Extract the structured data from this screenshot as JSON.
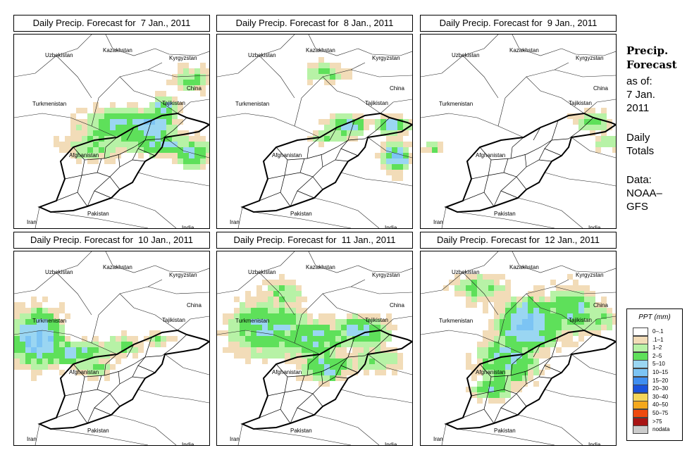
{
  "panels": [
    {
      "title": "Daily Precip. Forecast for  7 Jan., 2011",
      "day": 7
    },
    {
      "title": "Daily Precip. Forecast for  8 Jan., 2011",
      "day": 8
    },
    {
      "title": "Daily Precip. Forecast for  9 Jan., 2011",
      "day": 9
    },
    {
      "title": "Daily Precip. Forecast for  10 Jan., 2011",
      "day": 10
    },
    {
      "title": "Daily Precip. Forecast for  11 Jan., 2011",
      "day": 11
    },
    {
      "title": "Daily Precip. Forecast for  12 Jan., 2011",
      "day": 12
    }
  ],
  "map_labels": {
    "uzbekistan": "Uzbekistan",
    "kazakhstan": "Kazakhstan",
    "kyrgyzstan": "Kyrgyzstan",
    "china": "China",
    "turkmenistan": "Turkmenistan",
    "tajikistan": "Tajikistan",
    "afghanistan": "Afghanistan",
    "pakistan": "Pakistan",
    "iran": "Iran",
    "india": "India"
  },
  "sidebar": {
    "title_line1": "Precip.",
    "title_line2": "Forecast",
    "asof_line1": "as of:",
    "asof_line2": "7 Jan.",
    "asof_line3": "2011",
    "daily_line1": "Daily",
    "daily_line2": "Totals",
    "data_line1": "Data:",
    "data_line2": "NOAA–",
    "data_line3": "GFS"
  },
  "legend": {
    "title": "PPT (mm)",
    "classes": [
      {
        "label": "0–.1",
        "color": "#ffffff"
      },
      {
        "label": ".1–1",
        "color": "#f2dcb8"
      },
      {
        "label": "1–2",
        "color": "#b7f2a6"
      },
      {
        "label": "2–5",
        "color": "#5ee05a"
      },
      {
        "label": "5–10",
        "color": "#9ad6f2"
      },
      {
        "label": "10–15",
        "color": "#7cc4f4"
      },
      {
        "label": "15–20",
        "color": "#3f8ef0"
      },
      {
        "label": "20–30",
        "color": "#1a52dc"
      },
      {
        "label": "30–40",
        "color": "#f4d55a"
      },
      {
        "label": "40–50",
        "color": "#f4a81c"
      },
      {
        "label": "50–75",
        "color": "#ee4a10"
      },
      {
        "label": ">75",
        "color": "#a81414"
      },
      {
        "label": "nodata",
        "color": "#cccccc"
      }
    ]
  }
}
